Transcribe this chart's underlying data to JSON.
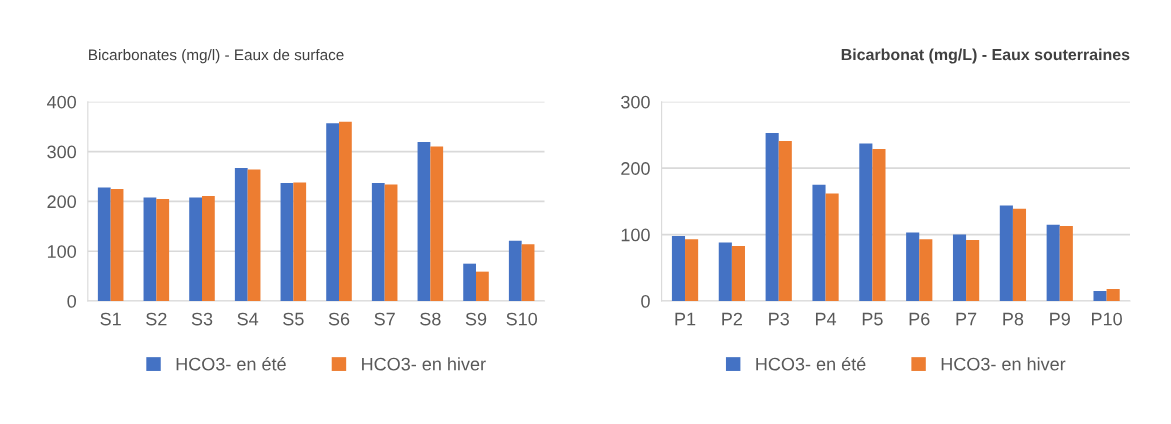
{
  "chart_data": [
    {
      "type": "bar",
      "title": "Bicarbonates (mg/l) - Eaux de surface",
      "categories": [
        "S1",
        "S2",
        "S3",
        "S4",
        "S5",
        "S6",
        "S7",
        "S8",
        "S9",
        "S10"
      ],
      "series": [
        {
          "name": "HCO3- en été",
          "color": "#4472c4",
          "values": [
            228,
            208,
            208,
            267,
            237,
            357,
            237,
            319,
            75,
            121
          ]
        },
        {
          "name": "HCO3- en hiver",
          "color": "#ed7d31",
          "values": [
            225,
            205,
            211,
            264,
            238,
            360,
            234,
            310,
            59,
            114
          ]
        }
      ],
      "ylim": [
        0,
        400
      ],
      "yticks": [
        0,
        100,
        200,
        300,
        400
      ],
      "grid": "y",
      "legend": "bottom"
    },
    {
      "type": "bar",
      "title": "Bicarbonat (mg/L) - Eaux souterraines",
      "categories": [
        "P1",
        "P2",
        "P3",
        "P4",
        "P5",
        "P6",
        "P7",
        "P8",
        "P9",
        "P10"
      ],
      "series": [
        {
          "name": "HCO3- en été",
          "color": "#4472c4",
          "values": [
            98,
            88,
            253,
            175,
            237,
            103,
            100,
            144,
            115,
            15
          ]
        },
        {
          "name": "HCO3- en hiver",
          "color": "#ed7d31",
          "values": [
            93,
            83,
            241,
            162,
            229,
            93,
            92,
            139,
            113,
            18
          ]
        }
      ],
      "ylim": [
        0,
        300
      ],
      "yticks": [
        0,
        100,
        200,
        300
      ],
      "grid": "y",
      "legend": "bottom"
    }
  ]
}
